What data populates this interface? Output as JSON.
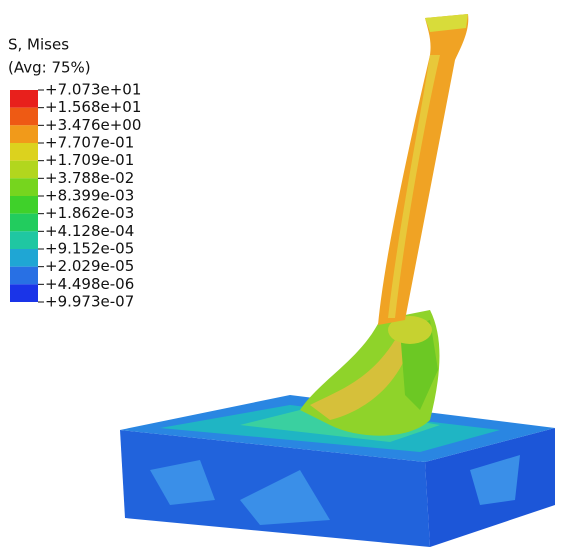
{
  "legend": {
    "title": "S, Mises",
    "subtitle": "(Avg: 75%)",
    "labels": [
      "+7.073e+01",
      "+1.568e+01",
      "+3.476e+00",
      "+7.707e-01",
      "+1.709e-01",
      "+3.788e-02",
      "+8.399e-03",
      "+1.862e-03",
      "+4.128e-04",
      "+9.152e-05",
      "+2.029e-05",
      "+4.498e-06",
      "+9.973e-07"
    ],
    "colors": [
      "#e8201c",
      "#ee5a14",
      "#f19a1a",
      "#dcd21e",
      "#b2d61e",
      "#76d51e",
      "#3fd12a",
      "#22cc5e",
      "#1fc7a2",
      "#1fa6d4",
      "#2870e4",
      "#1a34e8"
    ]
  }
}
